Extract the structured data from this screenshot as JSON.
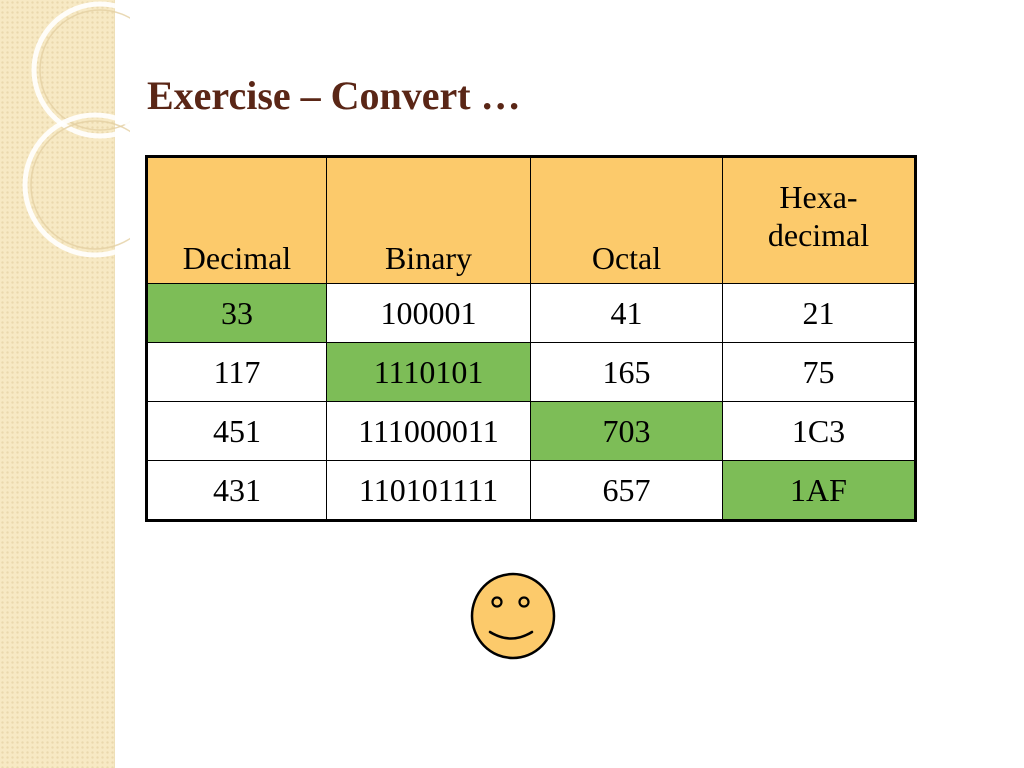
{
  "slide": {
    "title": "Exercise – Convert …"
  },
  "table": {
    "headers": [
      "Decimal",
      "Binary",
      "Octal",
      "Hexa-decimal"
    ],
    "header_hexa_lines": [
      "Hexa-",
      "decimal"
    ],
    "rows": [
      [
        "33",
        "100001",
        "41",
        "21"
      ],
      [
        "117",
        "1110101",
        "165",
        "75"
      ],
      [
        "451",
        "111000011",
        "703",
        "1C3"
      ],
      [
        "431",
        "110101111",
        "657",
        "1AF"
      ]
    ],
    "highlight_color": "#7dbd57",
    "header_color": "#fcca6b"
  },
  "decorations": {
    "icon": "smiley-face-icon",
    "side_band_color": "#f7e9c4"
  }
}
